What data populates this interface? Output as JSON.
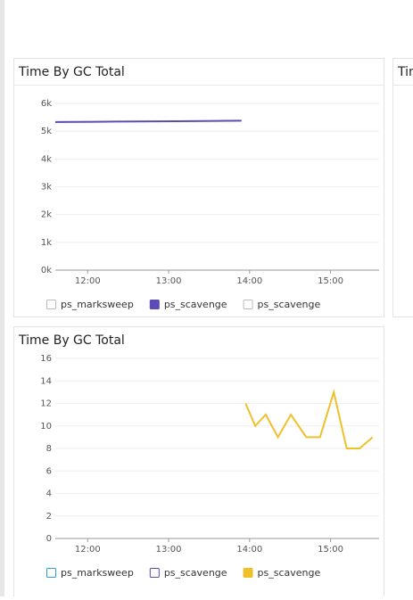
{
  "side_panel_title": "Time By GC Total",
  "chart_data": [
    {
      "type": "line",
      "title": "Time By GC Total",
      "x": [
        11.6,
        12.1,
        12.6,
        13.1,
        13.6,
        13.9
      ],
      "xlim": [
        11.6,
        15.6
      ],
      "xticks": [
        {
          "value": 12,
          "label": "12:00"
        },
        {
          "value": 13,
          "label": "13:00"
        },
        {
          "value": 14,
          "label": "14:00"
        },
        {
          "value": 15,
          "label": "15:00"
        }
      ],
      "ylim": [
        0,
        6000
      ],
      "yticks": [
        {
          "value": 0,
          "label": "0k"
        },
        {
          "value": 1000,
          "label": "1k"
        },
        {
          "value": 2000,
          "label": "2k"
        },
        {
          "value": 3000,
          "label": "3k"
        },
        {
          "value": 4000,
          "label": "4k"
        },
        {
          "value": 5000,
          "label": "5k"
        },
        {
          "value": 6000,
          "label": "6k"
        }
      ],
      "grid": true,
      "series": [
        {
          "name": "ps_marksweep",
          "color": "#bbbbbb",
          "visible": false,
          "values": [
            null,
            null,
            null,
            null,
            null,
            null
          ]
        },
        {
          "name": "ps_scavenge",
          "color": "#5b4bb7",
          "visible": true,
          "values": [
            5330,
            5340,
            5350,
            5360,
            5370,
            5380
          ]
        },
        {
          "name": "ps_scavenge",
          "color": "#bbbbbb",
          "visible": false,
          "values": [
            null,
            null,
            null,
            null,
            null,
            null
          ]
        }
      ]
    },
    {
      "type": "line",
      "title": "Time By GC Total",
      "x": [
        13.95,
        14.07,
        14.2,
        14.35,
        14.51,
        14.7,
        14.87,
        15.04,
        15.2,
        15.36,
        15.52
      ],
      "xlim": [
        11.6,
        15.6
      ],
      "xticks": [
        {
          "value": 12,
          "label": "12:00"
        },
        {
          "value": 13,
          "label": "13:00"
        },
        {
          "value": 14,
          "label": "14:00"
        },
        {
          "value": 15,
          "label": "15:00"
        }
      ],
      "ylim": [
        0,
        16
      ],
      "yticks": [
        0,
        2,
        4,
        6,
        8,
        10,
        12,
        14,
        16
      ],
      "grid": true,
      "series": [
        {
          "name": "ps_marksweep",
          "color": "#2d9fd9",
          "visible": false,
          "values": [
            null,
            null,
            null,
            null,
            null,
            null,
            null,
            null,
            null,
            null,
            null
          ]
        },
        {
          "name": "ps_scavenge",
          "color": "#5b4bb7",
          "visible": false,
          "values": [
            null,
            null,
            null,
            null,
            null,
            null,
            null,
            null,
            null,
            null,
            null
          ]
        },
        {
          "name": "ps_scavenge",
          "color": "#f0c02a",
          "visible": true,
          "values": [
            12,
            10,
            11,
            9,
            11,
            9,
            9,
            13,
            8,
            8,
            9
          ]
        }
      ]
    }
  ]
}
